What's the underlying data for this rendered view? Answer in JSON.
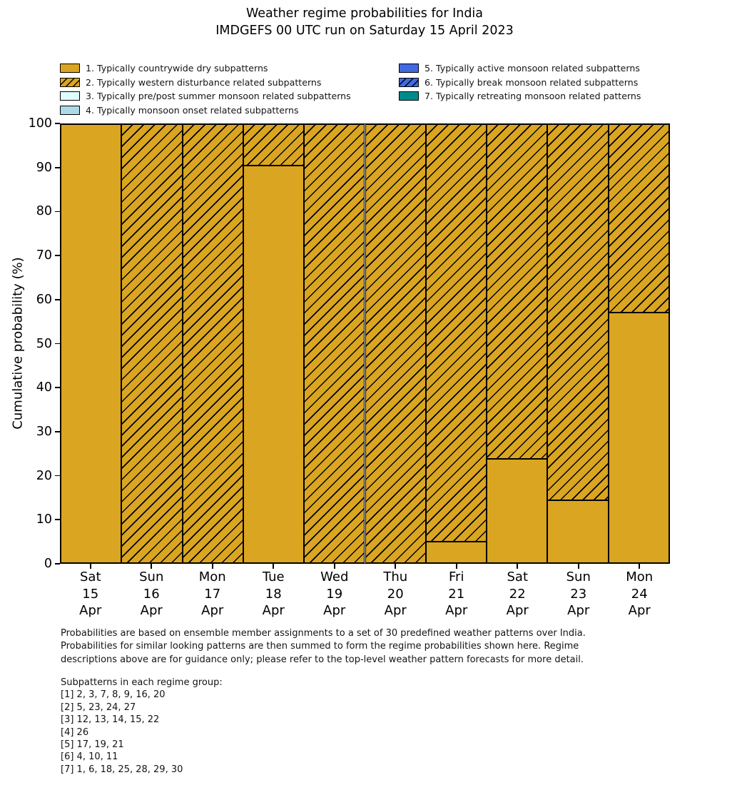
{
  "title": {
    "line1": "Weather regime probabilities for India",
    "line2": "IMDGEFS 00 UTC run on Saturday 15 April 2023"
  },
  "legend": {
    "items": [
      {
        "label": "1. Typically countrywide dry subpatterns",
        "color": "#DAA520",
        "hatch": false,
        "column": "left"
      },
      {
        "label": "2. Typically western disturbance related subpatterns",
        "color": "#DAA520",
        "hatch": true,
        "column": "left"
      },
      {
        "label": "3. Typically pre/post summer monsoon related subpatterns",
        "color": "#E0FFFF",
        "hatch": false,
        "column": "left"
      },
      {
        "label": "4. Typically monsoon onset related subpatterns",
        "color": "#ADD8E6",
        "hatch": false,
        "column": "left"
      },
      {
        "label": "5. Typically active monsoon related subpatterns",
        "color": "#4169E1",
        "hatch": false,
        "column": "right"
      },
      {
        "label": "6. Typically break monsoon related subpatterns",
        "color": "#4169E1",
        "hatch": true,
        "column": "right"
      },
      {
        "label": "7. Typically retreating monsoon related patterns",
        "color": "#008B8B",
        "hatch": false,
        "column": "right"
      }
    ]
  },
  "chart_data": {
    "type": "bar",
    "stacked": true,
    "title": "Weather regime probabilities for India — IMDGEFS 00 UTC run on Saturday 15 April 2023",
    "xlabel": "",
    "ylabel": "Cumulative probability (%)",
    "ylim": [
      0,
      100
    ],
    "yticks": [
      0,
      10,
      20,
      30,
      40,
      50,
      60,
      70,
      80,
      90,
      100
    ],
    "grid": false,
    "legend_position": "above-plot, two columns",
    "categories": [
      "Sat 15 Apr",
      "Sun 16 Apr",
      "Mon 17 Apr",
      "Tue 18 Apr",
      "Wed 19 Apr",
      "Thu 20 Apr",
      "Fri 21 Apr",
      "Sat 22 Apr",
      "Sun 23 Apr",
      "Mon 24 Apr"
    ],
    "x_tick_lines": [
      [
        "Sat",
        "15",
        "Apr"
      ],
      [
        "Sun",
        "16",
        "Apr"
      ],
      [
        "Mon",
        "17",
        "Apr"
      ],
      [
        "Tue",
        "18",
        "Apr"
      ],
      [
        "Wed",
        "19",
        "Apr"
      ],
      [
        "Thu",
        "20",
        "Apr"
      ],
      [
        "Fri",
        "21",
        "Apr"
      ],
      [
        "Sat",
        "22",
        "Apr"
      ],
      [
        "Sun",
        "23",
        "Apr"
      ],
      [
        "Mon",
        "24",
        "Apr"
      ]
    ],
    "series": [
      {
        "name": "1. Typically countrywide dry subpatterns",
        "color": "#DAA520",
        "hatch": false,
        "values": [
          100,
          0,
          0,
          90.5,
          0,
          0,
          4.8,
          23.8,
          14.3,
          57.1
        ]
      },
      {
        "name": "2. Typically western disturbance related subpatterns",
        "color": "#DAA520",
        "hatch": true,
        "values": [
          0,
          100,
          100,
          9.5,
          100,
          100,
          95.2,
          76.2,
          85.7,
          42.9
        ]
      }
    ],
    "colors": {
      "bar_face": "#DAA520",
      "bar_edge": "#000000",
      "hatch_line": "#000000"
    }
  },
  "footer": {
    "lines": [
      "Probabilities are based on ensemble member assignments to a set of 30 predefined weather patterns over India.",
      "Probabilities for similar looking patterns are then summed to form the regime probabilities shown here. Regime",
      "descriptions above are for guidance only; please refer to the top-level weather pattern forecasts for more detail."
    ]
  },
  "subpatterns": {
    "heading": "Subpatterns in each regime group:",
    "lines": [
      "[1] 2, 3, 7, 8, 9, 16, 20",
      "[2] 5, 23, 24, 27",
      "[3] 12, 13, 14, 15, 22",
      "[4] 26",
      "[5] 17, 19, 21",
      "[6] 4, 10, 11",
      "[7] 1, 6, 18, 25, 28, 29, 30"
    ]
  }
}
